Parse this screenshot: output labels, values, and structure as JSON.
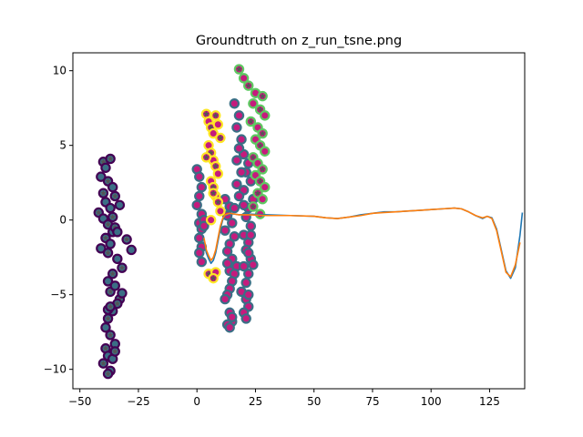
{
  "chart_data": {
    "type": "scatter",
    "title": "Groundtruth on z_run_tsne.png",
    "xlabel": "",
    "ylabel": "",
    "xlim": [
      -53,
      140
    ],
    "ylim": [
      -11.3,
      11.2
    ],
    "xticks": [
      -50,
      -25,
      0,
      25,
      50,
      75,
      100,
      125
    ],
    "xtick_labels": [
      "−50",
      "−25",
      "0",
      "25",
      "50",
      "75",
      "100",
      "125"
    ],
    "yticks": [
      -10,
      -5,
      0,
      5,
      10
    ],
    "ytick_labels": [
      "−10",
      "−5",
      "0",
      "5",
      "10"
    ],
    "grid": false,
    "legend": "none",
    "colors": {
      "dark_purple": "#440154",
      "teal": "#3b6f86",
      "yellow": "#fde725",
      "green": "#5ec962",
      "magenta": "#c51b7d",
      "line_blue": "#1f77b4",
      "line_orange": "#ff7f0e",
      "star": "#555555"
    },
    "series": [
      {
        "marker": "circle+star",
        "edge_color": "dark_purple",
        "face_color": "teal",
        "x": [
          -40,
          -39,
          -37,
          -41,
          -38,
          -36,
          -40,
          -39,
          -35,
          -37,
          -42,
          -40,
          -38,
          -36,
          -39,
          -37,
          -35,
          -41,
          -38,
          -33,
          -36,
          -34,
          -30,
          -28,
          -32,
          -34,
          -36,
          -38,
          -37,
          -35,
          -33,
          -32,
          -34,
          -36,
          -38,
          -39,
          -37,
          -35,
          -39,
          -38,
          -40,
          -37,
          -38,
          -36,
          -35,
          -38,
          -37
        ],
        "y": [
          3.9,
          3.5,
          4.1,
          2.9,
          2.6,
          2.2,
          1.8,
          1.2,
          1.6,
          0.8,
          0.5,
          0.1,
          -0.3,
          -0.8,
          -1.2,
          -1.6,
          -0.5,
          -1.9,
          -2.2,
          1.0,
          0.2,
          -0.8,
          -1.3,
          -2.0,
          -3.2,
          -2.6,
          -3.6,
          -4.1,
          -4.8,
          -4.4,
          -5.3,
          -4.9,
          -5.6,
          -6.1,
          -6.6,
          -7.2,
          -7.7,
          -8.3,
          -8.6,
          -9.1,
          -9.6,
          -10.1,
          -10.3,
          -9.3,
          -8.8,
          -6.0,
          -5.8
        ]
      },
      {
        "marker": "circle",
        "edge_color": "teal",
        "face_color": "magenta",
        "x": [
          0,
          1,
          2,
          1,
          0,
          2,
          1,
          3,
          2,
          1,
          3,
          2,
          1,
          2,
          12,
          14,
          13,
          15,
          12,
          16,
          14,
          13,
          15,
          17,
          14,
          13,
          16,
          15,
          14,
          13,
          12,
          14,
          15,
          13,
          14,
          15,
          20,
          22,
          21,
          23,
          20,
          24,
          22,
          21,
          23,
          20,
          22,
          21,
          23,
          20,
          22,
          21,
          19,
          21,
          22,
          20,
          21,
          22,
          24,
          23,
          20,
          22
        ],
        "y": [
          3.4,
          2.9,
          2.2,
          1.6,
          1.0,
          0.4,
          -0.2,
          0.0,
          -0.6,
          -1.2,
          -0.4,
          -1.8,
          -2.2,
          -2.8,
          1.4,
          0.9,
          0.3,
          -0.2,
          -0.7,
          -1.1,
          -1.6,
          -2.1,
          -2.6,
          -3.1,
          -3.4,
          -2.9,
          -3.6,
          -4.1,
          -4.6,
          -5.0,
          -5.3,
          -6.2,
          -6.8,
          -7.0,
          -7.2,
          -6.5,
          4.4,
          3.8,
          3.2,
          2.6,
          2.0,
          1.4,
          0.8,
          0.2,
          -0.4,
          -1.0,
          -1.5,
          -2.0,
          -2.6,
          -3.1,
          -3.6,
          -4.2,
          -4.8,
          -5.3,
          -5.8,
          -6.2,
          -6.6,
          -5.0,
          -3.0,
          -1.0,
          1.0,
          -2.2
        ]
      },
      {
        "marker": "circle+star",
        "edge_color": "yellow",
        "face_color": "magenta",
        "x": [
          4,
          5,
          6,
          7,
          8,
          9,
          10,
          5,
          6,
          7,
          8,
          9,
          4,
          6,
          7,
          8,
          9,
          10,
          7,
          6,
          5,
          8,
          7
        ],
        "y": [
          7.1,
          6.6,
          6.2,
          5.8,
          7.0,
          6.4,
          5.5,
          5.0,
          4.5,
          4.0,
          3.6,
          3.1,
          4.2,
          2.6,
          2.2,
          1.6,
          1.2,
          0.6,
          1.8,
          0.0,
          -3.6,
          -3.5,
          -3.9
        ]
      },
      {
        "marker": "circle+star",
        "edge_color": "green",
        "face_color": "magenta",
        "x": [
          18,
          20,
          22,
          25,
          28,
          24,
          27,
          29,
          23,
          26,
          28,
          25,
          27,
          29,
          24,
          26,
          28,
          25,
          27,
          29,
          26,
          28,
          24,
          27
        ],
        "y": [
          10.1,
          9.5,
          9.0,
          8.5,
          8.3,
          7.8,
          7.4,
          7.0,
          6.6,
          6.2,
          5.8,
          5.4,
          5.0,
          4.6,
          4.2,
          3.8,
          3.4,
          3.0,
          2.6,
          2.2,
          1.8,
          1.4,
          0.9,
          0.4
        ]
      },
      {
        "marker": "circle",
        "edge_color": "teal",
        "face_color": "magenta",
        "x": [
          16,
          18,
          17,
          19,
          18,
          17,
          19,
          17,
          18,
          16
        ],
        "y": [
          7.8,
          7.0,
          6.2,
          5.4,
          4.8,
          4.0,
          3.2,
          2.4,
          1.6,
          0.8
        ]
      }
    ],
    "lines": [
      {
        "color": "line_blue",
        "x": [
          3,
          4,
          5,
          6,
          7,
          8,
          9,
          10,
          11,
          12,
          14,
          16,
          18,
          22,
          30,
          40,
          50,
          55,
          60,
          65,
          70,
          75,
          80,
          85,
          90,
          95,
          100,
          105,
          110,
          113,
          116,
          119,
          122,
          124,
          126,
          128,
          130,
          132,
          134,
          136,
          138,
          139
        ],
        "y": [
          -1.4,
          -2.2,
          -2.6,
          -2.9,
          -2.7,
          -2.2,
          -1.4,
          -0.6,
          0.0,
          0.3,
          0.4,
          0.4,
          0.35,
          0.4,
          0.35,
          0.3,
          0.25,
          0.15,
          0.1,
          0.2,
          0.35,
          0.45,
          0.55,
          0.55,
          0.6,
          0.65,
          0.7,
          0.75,
          0.8,
          0.75,
          0.55,
          0.3,
          0.1,
          0.25,
          0.15,
          -0.6,
          -2.0,
          -3.4,
          -3.9,
          -3.2,
          -1.0,
          0.5
        ]
      },
      {
        "color": "line_orange",
        "x": [
          3,
          4,
          5,
          6,
          7,
          8,
          9,
          10,
          11,
          12,
          14,
          16,
          18,
          22,
          30,
          40,
          50,
          55,
          60,
          65,
          70,
          75,
          80,
          85,
          90,
          95,
          100,
          105,
          110,
          113,
          116,
          119,
          122,
          124,
          126,
          128,
          130,
          132,
          134,
          136,
          138
        ],
        "y": [
          -1.2,
          -2.0,
          -2.4,
          -2.7,
          -2.5,
          -2.0,
          -1.2,
          -0.4,
          0.1,
          0.35,
          0.45,
          0.4,
          0.35,
          0.35,
          0.3,
          0.3,
          0.25,
          0.15,
          0.1,
          0.2,
          0.3,
          0.45,
          0.5,
          0.55,
          0.6,
          0.65,
          0.7,
          0.75,
          0.8,
          0.75,
          0.55,
          0.3,
          0.15,
          0.25,
          0.1,
          -0.7,
          -2.1,
          -3.5,
          -3.8,
          -3.0,
          -1.5
        ]
      }
    ]
  }
}
